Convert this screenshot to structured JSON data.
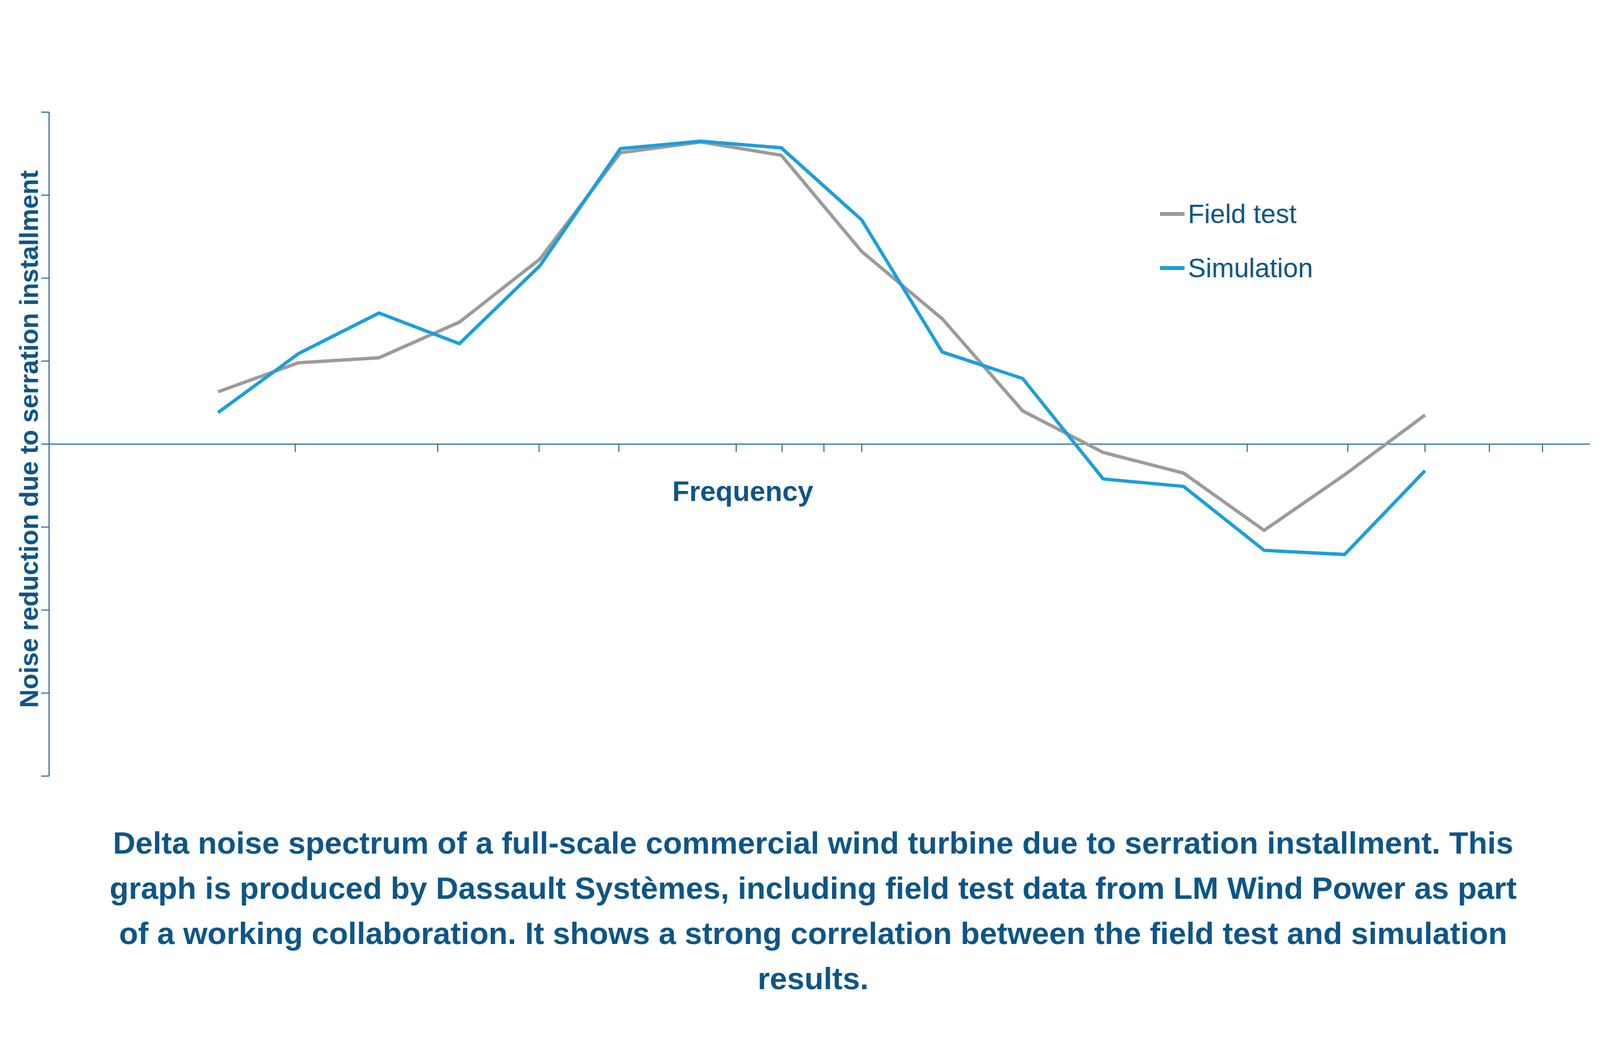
{
  "chart_data": {
    "type": "line",
    "title": "Delta noise spectrum of a full-scale commercial wind turbine due to serration installment. This graph is produced by Dassault Systèmes, including field test data from LM Wind Power as part of a working collaboration. It shows a strong correlation between the field test and simulation results.",
    "x_label": "Frequency",
    "y_label": "Noise reduction due to serration installment",
    "x": [
      0,
      1,
      2,
      3,
      4,
      5,
      6,
      7,
      8,
      9,
      10,
      11,
      12,
      13,
      14,
      15
    ],
    "series": [
      {
        "name": "Field test",
        "color": "#9b9b9b",
        "values": [
          0.63,
          0.98,
          1.04,
          1.47,
          2.23,
          3.51,
          3.64,
          3.48,
          2.32,
          1.51,
          0.4,
          -0.1,
          -0.35,
          -1.04,
          -0.37,
          0.35
        ]
      },
      {
        "name": "Simulation",
        "color": "#1a9fdb",
        "values": [
          0.38,
          1.09,
          1.58,
          1.21,
          2.15,
          3.56,
          3.65,
          3.57,
          2.7,
          1.11,
          0.79,
          -0.42,
          -0.51,
          -1.28,
          -1.33,
          -0.32
        ]
      }
    ],
    "xlim": [
      -2.1,
      17.05
    ],
    "xticks": [
      0.96,
      2.73,
      3.99,
      4.98,
      6.44,
      7.01,
      7.53,
      8.0,
      12.79,
      14.04,
      15.0,
      15.8,
      16.46
    ],
    "ylim": [
      -4,
      4
    ],
    "yticks": [
      -4,
      -3,
      -2,
      -1,
      0,
      1,
      2,
      3,
      4
    ],
    "tick_labels": false,
    "legend": "upper right",
    "grid": false
  }
}
